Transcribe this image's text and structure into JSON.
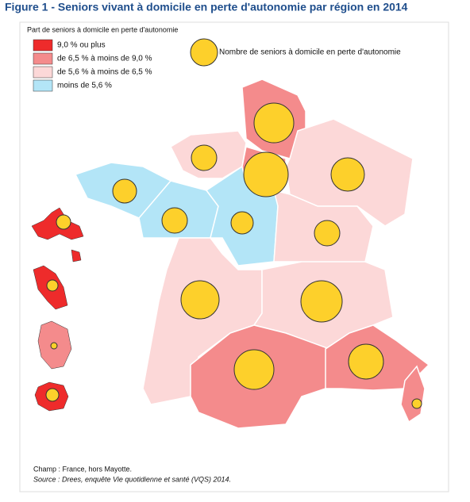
{
  "header": {
    "title": "Figure 1 - Seniors vivant à domicile en perte d'autonomie par région en 2014"
  },
  "legend": {
    "title": "Part de seniors à domicile en perte d'autonomie",
    "items": [
      "9,0 % ou plus",
      "de 6,5 % à moins de 9,0 %",
      "de 5,6 % à moins de 6,5 %",
      "moins de 5,6 %"
    ],
    "bubble": "Nombre de seniors à domicile en perte d'autonomie"
  },
  "notes": {
    "scope": "Champ : France, hors Mayotte.",
    "source": "Source : Drees, enquête Vie quotidienne et santé (VQS) 2014."
  }
}
